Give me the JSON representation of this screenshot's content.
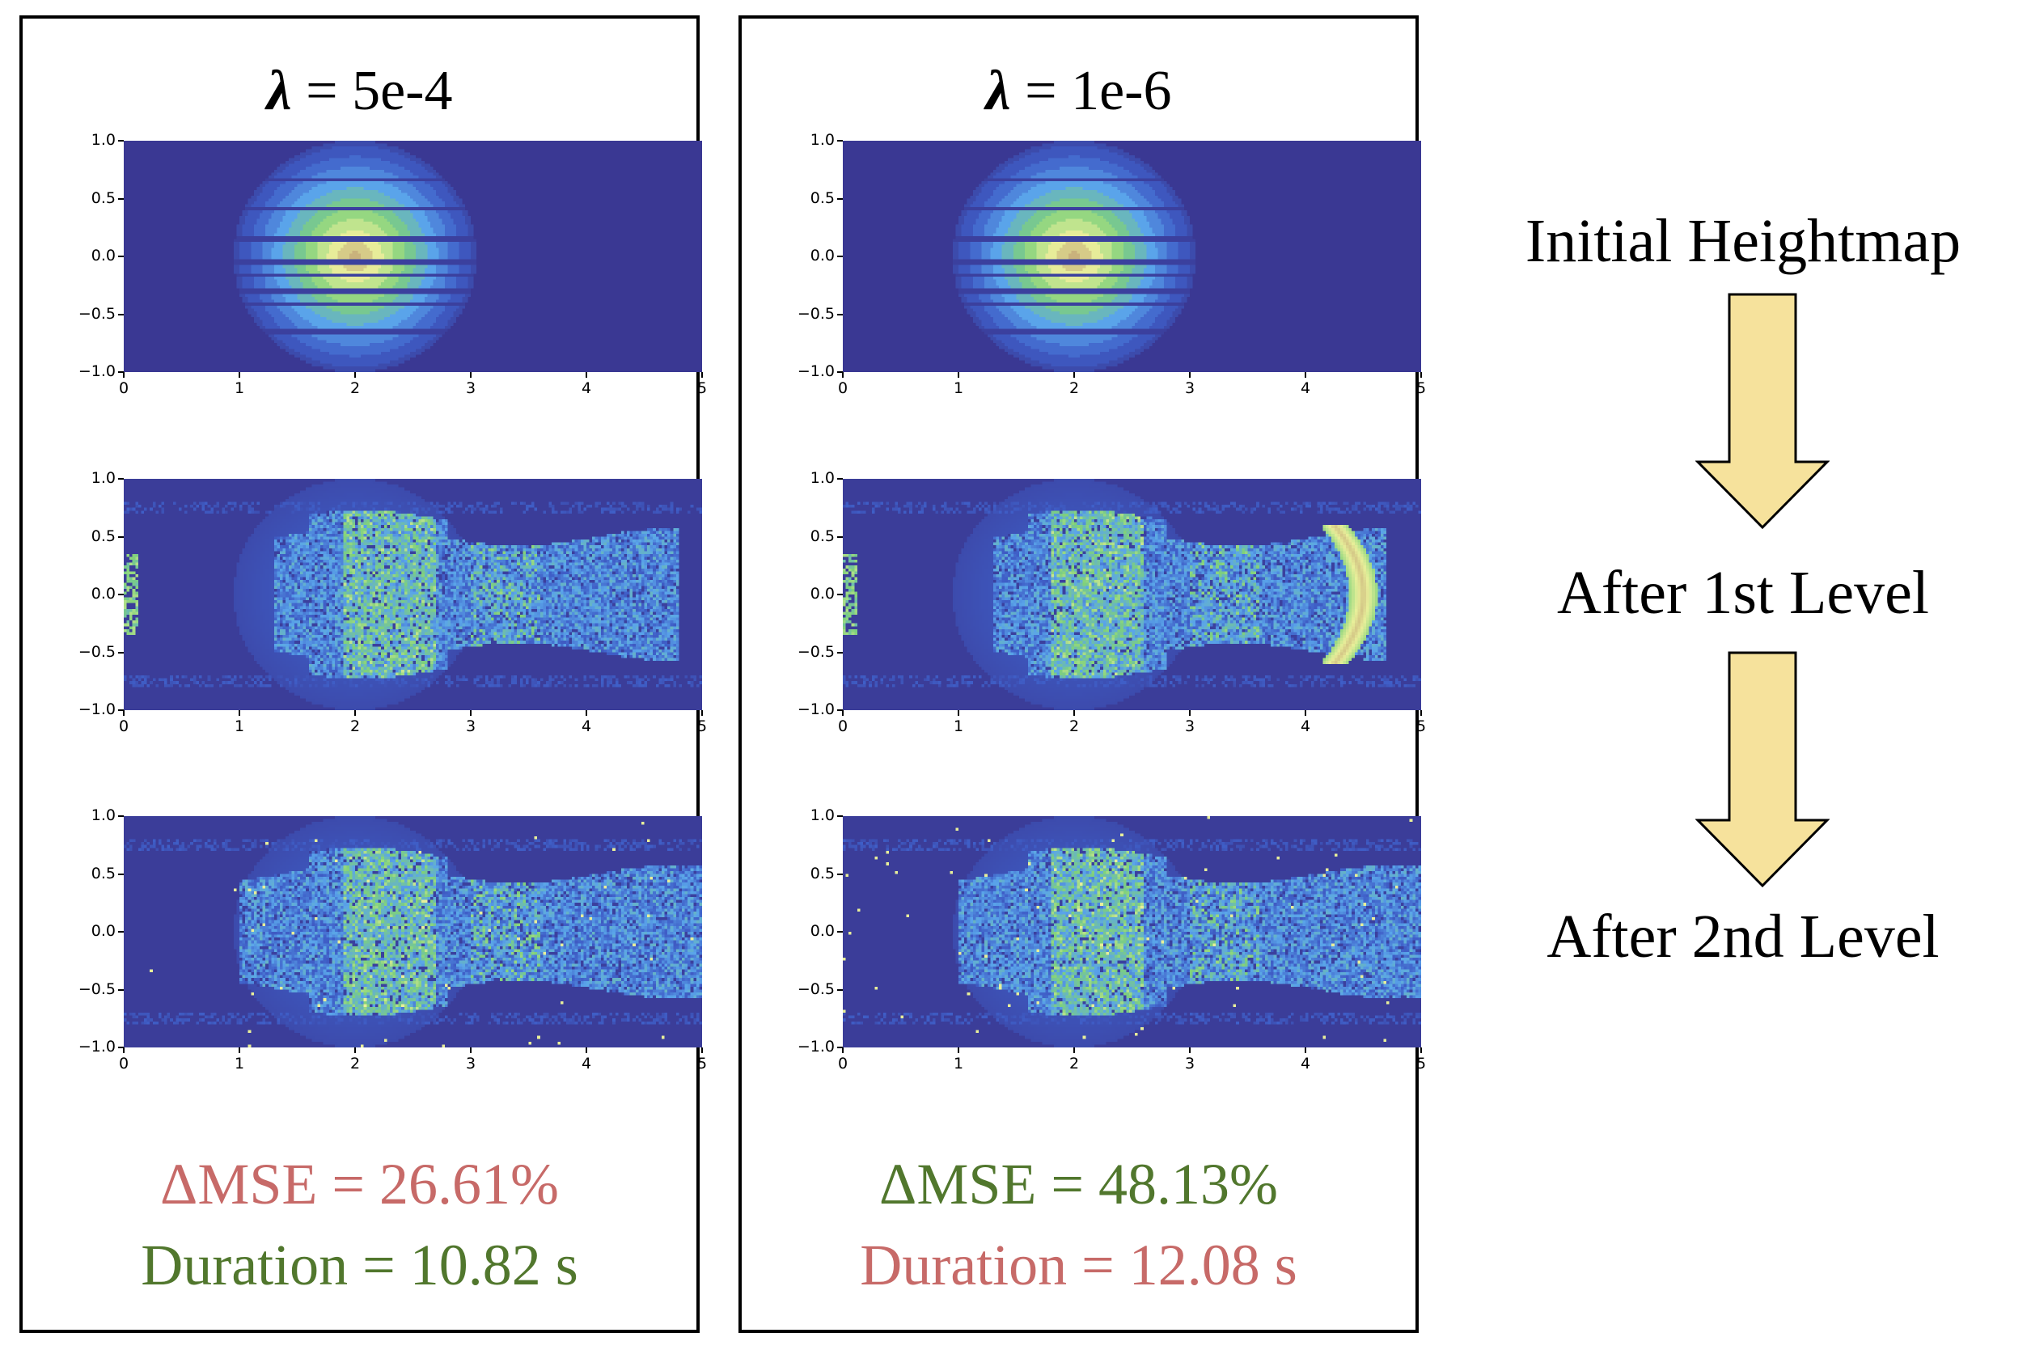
{
  "panels": [
    {
      "title_symbol": "λ",
      "title_value": "= 5e-4",
      "mse_label": "ΔMSE = 26.61%",
      "duration_label": "Duration = 10.82 s",
      "mse_color": "#c76a68",
      "duration_color": "#51772d"
    },
    {
      "title_symbol": "λ",
      "title_value": "= 1e-6",
      "mse_label": "ΔMSE = 48.13%",
      "duration_label": "Duration = 12.08 s",
      "mse_color": "#51772d",
      "duration_color": "#c76a68"
    }
  ],
  "stages": [
    "Initial Heightmap",
    "After 1st Level",
    "After 2nd Level"
  ],
  "arrow_color": "#f6e29c",
  "chart_data": {
    "type": "heatmap",
    "rows": [
      "Initial Heightmap",
      "After 1st Level",
      "After 2nd Level"
    ],
    "columns": [
      "λ = 5e-4",
      "λ = 1e-6"
    ],
    "xlim": [
      0,
      5
    ],
    "ylim": [
      -1.0,
      1.0
    ],
    "xticks": [
      "0",
      "1",
      "2",
      "3",
      "4",
      "5"
    ],
    "yticks": [
      "1.0",
      "0.5",
      "0.0",
      "−0.5",
      "−1.0"
    ],
    "colormap": [
      "#3a3893",
      "#3f5fc8",
      "#5aa5ea",
      "#7fd17a",
      "#e8ef9a",
      "#c9b27c"
    ]
  }
}
